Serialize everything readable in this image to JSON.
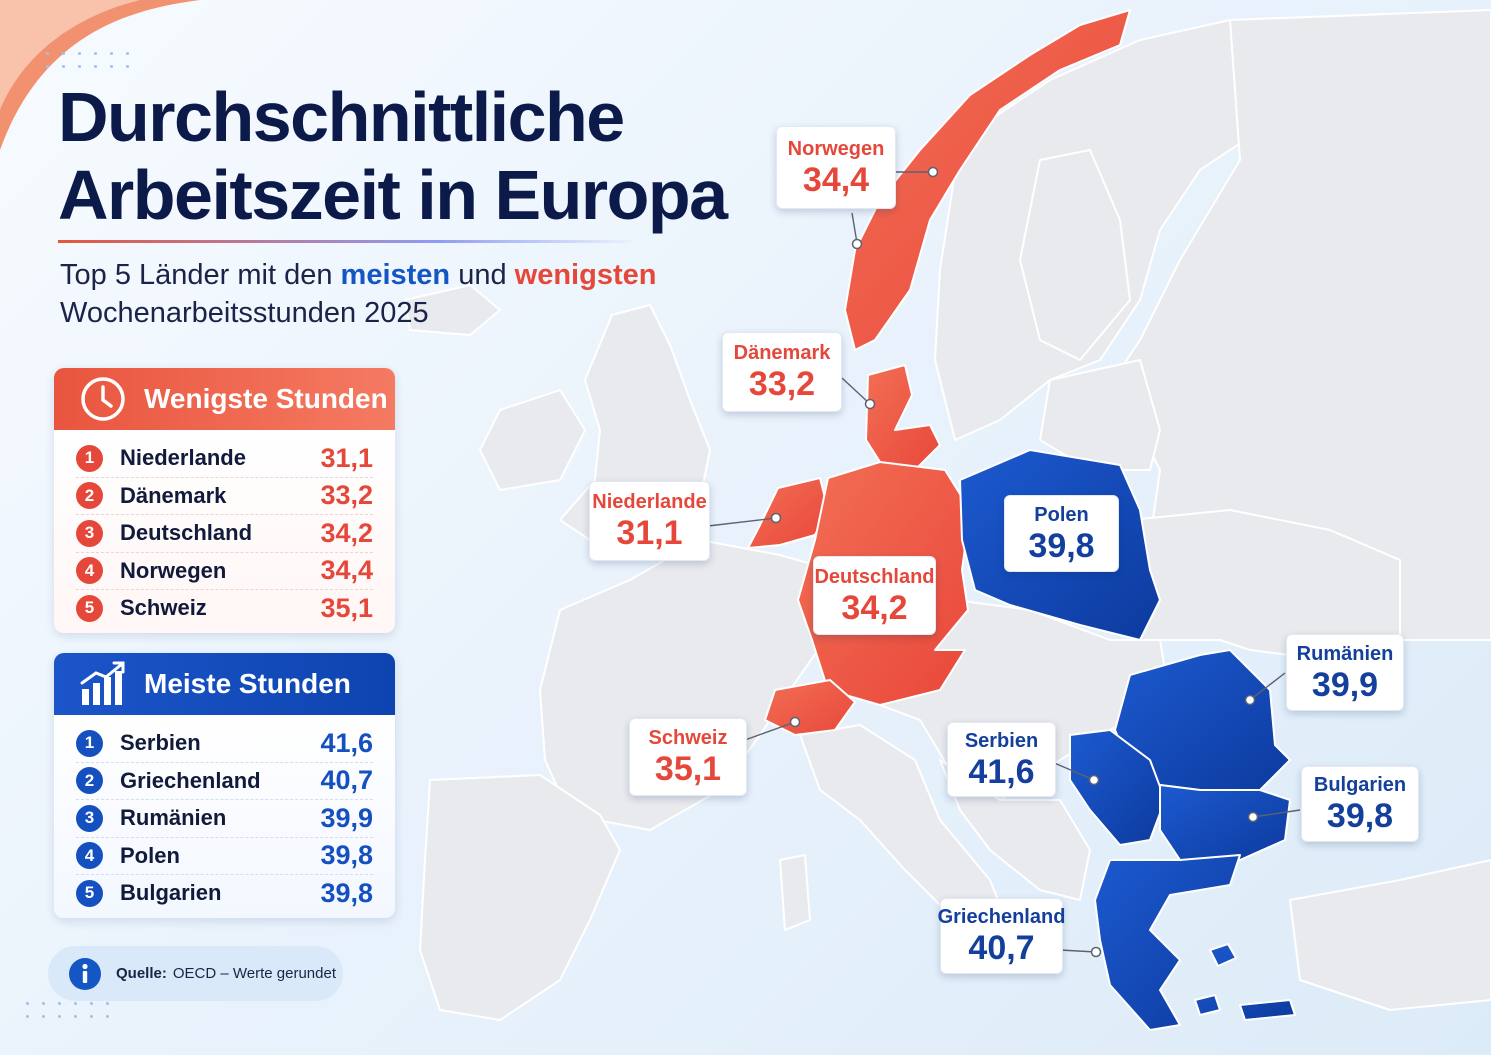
{
  "title_line1": "Durchschnittliche",
  "title_line2": "Arbeitszeit in Europa",
  "subtitle": {
    "part1": "Top 5 Länder mit den",
    "meisten": "meisten",
    "und": "und",
    "wenigsten": "wenigsten",
    "line2": "Wochenarbeitsstunden 2025"
  },
  "least_panel": {
    "heading": "Wenigste Stunden",
    "icon": "clock-icon",
    "color": "#e9553f",
    "rows": [
      {
        "rank": "1",
        "country": "Niederlande",
        "value": "31,1"
      },
      {
        "rank": "2",
        "country": "Dänemark",
        "value": "33,2"
      },
      {
        "rank": "3",
        "country": "Deutschland",
        "value": "34,2"
      },
      {
        "rank": "4",
        "country": "Norwegen",
        "value": "34,4"
      },
      {
        "rank": "5",
        "country": "Schweiz",
        "value": "35,1"
      }
    ]
  },
  "most_panel": {
    "heading": "Meiste Stunden",
    "icon": "rising-bar-chart-icon",
    "color": "#1b55c9",
    "rows": [
      {
        "rank": "1",
        "country": "Serbien",
        "value": "41,6"
      },
      {
        "rank": "2",
        "country": "Griechenland",
        "value": "40,7"
      },
      {
        "rank": "3",
        "country": "Rumänien",
        "value": "39,9"
      },
      {
        "rank": "4",
        "country": "Polen",
        "value": "39,8"
      },
      {
        "rank": "5",
        "country": "Bulgarien",
        "value": "39,8"
      }
    ]
  },
  "source": {
    "label": "Quelle:",
    "text": "OECD – Werte gerundet",
    "icon": "info-icon"
  },
  "callouts": {
    "norwegen": {
      "name": "Norwegen",
      "value": "34,4"
    },
    "daenemark": {
      "name": "Dänemark",
      "value": "33,2"
    },
    "niederlande": {
      "name": "Niederlande",
      "value": "31,1"
    },
    "deutschland": {
      "name": "Deutschland",
      "value": "34,2"
    },
    "schweiz": {
      "name": "Schweiz",
      "value": "35,1"
    },
    "polen": {
      "name": "Polen",
      "value": "39,8"
    },
    "rumaenien": {
      "name": "Rumänien",
      "value": "39,9"
    },
    "serbien": {
      "name": "Serbien",
      "value": "41,6"
    },
    "bulgarien": {
      "name": "Bulgarien",
      "value": "39,8"
    },
    "griechenland": {
      "name": "Griechenland",
      "value": "40,7"
    }
  },
  "colors": {
    "least": "#e9553f",
    "most": "#1550c0",
    "land": "#e9eaee",
    "background": "#eaf3fc"
  }
}
